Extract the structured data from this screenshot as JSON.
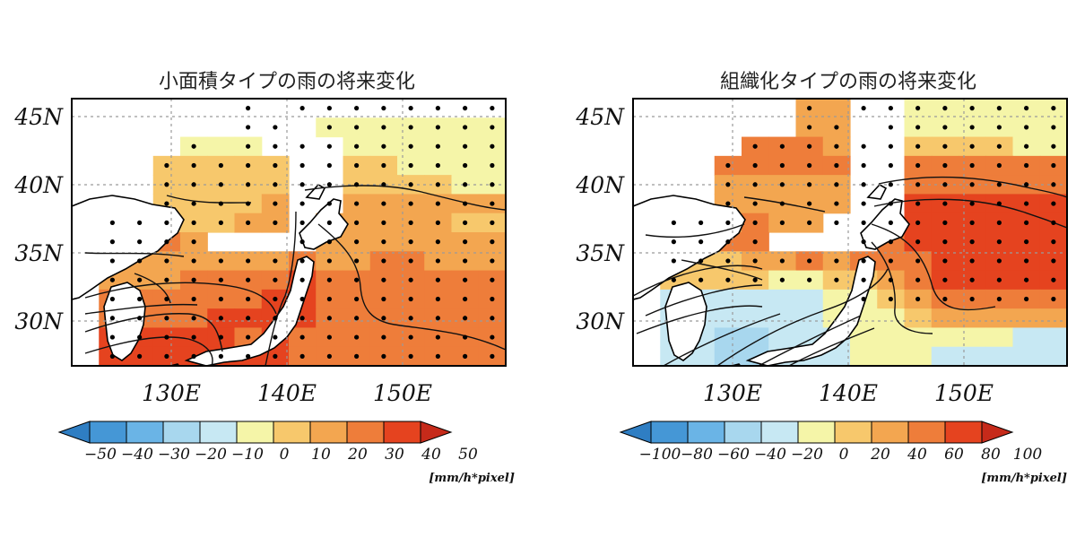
{
  "colors": {
    "scale": [
      "#2f7ec3",
      "#4597d6",
      "#6ab4e6",
      "#a8d7ee",
      "#c7e8f3",
      "#f5f5a8",
      "#f7c86c",
      "#f3a650",
      "#ee7d3a",
      "#e5431f",
      "#c62a1a"
    ]
  },
  "panels": [
    {
      "title": "小面積タイプの雨の将来変化",
      "lat_labels": [
        "45N",
        "40N",
        "35N",
        "30N"
      ],
      "lon_labels": [
        "130E",
        "140E",
        "150E"
      ],
      "colorbar_labels": [
        "−50",
        "−40",
        "−30",
        "−20",
        "−10",
        "0",
        "10",
        "20",
        "30",
        "40",
        "50"
      ],
      "unit": "[mm/h*pixel]",
      "grid_class": [
        [
          -1,
          -1,
          -1,
          -1,
          -1,
          -1,
          -1,
          -1,
          -1,
          -1,
          -1,
          -1,
          -1,
          -1,
          -1,
          -1
        ],
        [
          -1,
          -1,
          -1,
          -1,
          -1,
          -1,
          -1,
          -1,
          -1,
          5,
          5,
          5,
          5,
          5,
          5,
          5
        ],
        [
          -1,
          -1,
          -1,
          -1,
          5,
          5,
          5,
          -1,
          -1,
          -1,
          5,
          5,
          5,
          5,
          5,
          5
        ],
        [
          -1,
          -1,
          -1,
          6,
          6,
          6,
          6,
          6,
          -1,
          -1,
          6,
          6,
          5,
          5,
          5,
          5
        ],
        [
          -1,
          -1,
          -1,
          6,
          6,
          6,
          6,
          6,
          -1,
          -1,
          6,
          6,
          6,
          6,
          5,
          5
        ],
        [
          -1,
          -1,
          -1,
          6,
          6,
          6,
          6,
          7,
          -1,
          -1,
          7,
          7,
          7,
          7,
          7,
          7
        ],
        [
          -1,
          6,
          6,
          6,
          6,
          6,
          7,
          7,
          -1,
          7,
          7,
          7,
          7,
          7,
          6,
          6
        ],
        [
          -1,
          6,
          6,
          8,
          7,
          -1,
          -1,
          -1,
          -1,
          7,
          7,
          7,
          7,
          7,
          7,
          7
        ],
        [
          -1,
          7,
          7,
          7,
          7,
          7,
          7,
          7,
          8,
          7,
          7,
          8,
          8,
          7,
          7,
          7
        ],
        [
          -1,
          7,
          7,
          7,
          8,
          8,
          8,
          8,
          9,
          8,
          8,
          8,
          8,
          8,
          8,
          8
        ],
        [
          -1,
          8,
          8,
          8,
          8,
          8,
          8,
          9,
          9,
          8,
          8,
          8,
          8,
          8,
          8,
          8
        ],
        [
          -1,
          8,
          8,
          8,
          8,
          9,
          9,
          9,
          9,
          8,
          8,
          8,
          8,
          8,
          8,
          8
        ],
        [
          -1,
          9,
          9,
          9,
          9,
          9,
          8,
          9,
          8,
          8,
          8,
          8,
          8,
          8,
          8,
          8
        ],
        [
          -1,
          9,
          9,
          9,
          9,
          9,
          9,
          9,
          8,
          8,
          8,
          8,
          8,
          8,
          8,
          8
        ]
      ],
      "dots": [
        [
          0,
          0,
          0,
          0,
          0,
          0,
          1,
          0,
          1,
          1,
          1,
          1,
          1,
          1,
          1,
          1
        ],
        [
          0,
          0,
          0,
          0,
          0,
          0,
          1,
          1,
          0,
          1,
          1,
          1,
          1,
          1,
          1,
          1
        ],
        [
          0,
          0,
          0,
          0,
          1,
          0,
          1,
          1,
          1,
          1,
          1,
          1,
          1,
          1,
          1,
          1
        ],
        [
          0,
          0,
          0,
          1,
          1,
          1,
          1,
          1,
          1,
          1,
          1,
          1,
          1,
          1,
          1,
          1
        ],
        [
          0,
          0,
          0,
          1,
          1,
          1,
          1,
          1,
          1,
          1,
          1,
          1,
          1,
          1,
          1,
          1
        ],
        [
          0,
          0,
          0,
          1,
          1,
          1,
          1,
          1,
          1,
          1,
          1,
          1,
          1,
          1,
          1,
          1
        ],
        [
          0,
          1,
          1,
          1,
          1,
          1,
          1,
          1,
          1,
          1,
          1,
          1,
          1,
          1,
          1,
          1
        ],
        [
          0,
          1,
          1,
          1,
          1,
          0,
          0,
          0,
          1,
          1,
          1,
          1,
          1,
          1,
          1,
          1
        ],
        [
          0,
          1,
          1,
          1,
          1,
          1,
          1,
          1,
          1,
          1,
          1,
          1,
          1,
          1,
          1,
          1
        ],
        [
          0,
          1,
          1,
          1,
          1,
          1,
          1,
          1,
          1,
          1,
          1,
          1,
          1,
          1,
          1,
          1
        ],
        [
          0,
          1,
          1,
          1,
          1,
          1,
          1,
          1,
          1,
          1,
          1,
          1,
          1,
          1,
          1,
          1
        ],
        [
          0,
          1,
          1,
          1,
          1,
          1,
          1,
          1,
          1,
          1,
          1,
          1,
          1,
          1,
          1,
          1
        ],
        [
          0,
          1,
          1,
          1,
          1,
          1,
          1,
          1,
          1,
          1,
          1,
          1,
          1,
          1,
          1,
          1
        ],
        [
          0,
          1,
          1,
          1,
          1,
          1,
          1,
          1,
          1,
          1,
          1,
          1,
          1,
          1,
          1,
          1
        ]
      ]
    },
    {
      "title": "組織化タイプの雨の将来変化",
      "lat_labels": [
        "45N",
        "40N",
        "35N",
        "30N"
      ],
      "lon_labels": [
        "130E",
        "140E",
        "150E"
      ],
      "colorbar_labels": [
        "−100",
        "−80",
        "−60",
        "−40",
        "−20",
        "0",
        "20",
        "40",
        "60",
        "80",
        "100"
      ],
      "unit": "[mm/h*pixel]",
      "grid_class": [
        [
          -1,
          -1,
          -1,
          -1,
          -1,
          -1,
          7,
          7,
          -1,
          -1,
          5,
          5,
          5,
          5,
          5,
          5
        ],
        [
          -1,
          -1,
          -1,
          -1,
          -1,
          -1,
          7,
          7,
          -1,
          -1,
          5,
          5,
          5,
          5,
          5,
          5
        ],
        [
          -1,
          -1,
          -1,
          -1,
          8,
          8,
          8,
          7,
          -1,
          -1,
          6,
          6,
          6,
          6,
          5,
          5
        ],
        [
          -1,
          -1,
          -1,
          8,
          8,
          8,
          8,
          8,
          -1,
          -1,
          8,
          8,
          8,
          8,
          8,
          8
        ],
        [
          -1,
          -1,
          -1,
          7,
          7,
          7,
          7,
          7,
          -1,
          -1,
          8,
          8,
          8,
          8,
          8,
          8
        ],
        [
          -1,
          -1,
          -1,
          7,
          7,
          7,
          7,
          7,
          -1,
          -1,
          9,
          9,
          9,
          9,
          9,
          9
        ],
        [
          -1,
          7,
          7,
          7,
          8,
          7,
          7,
          -1,
          -1,
          -1,
          9,
          9,
          9,
          9,
          9,
          9
        ],
        [
          -1,
          6,
          6,
          8,
          8,
          -1,
          -1,
          -1,
          -1,
          8,
          9,
          9,
          9,
          9,
          9,
          9
        ],
        [
          -1,
          6,
          6,
          6,
          7,
          7,
          8,
          7,
          8,
          8,
          8,
          9,
          9,
          9,
          9,
          9
        ],
        [
          -1,
          6,
          6,
          6,
          6,
          5,
          5,
          6,
          6,
          7,
          8,
          9,
          9,
          9,
          9,
          9
        ],
        [
          -1,
          4,
          4,
          4,
          4,
          4,
          4,
          5,
          5,
          6,
          7,
          8,
          8,
          8,
          8,
          8
        ],
        [
          -1,
          4,
          4,
          4,
          4,
          4,
          4,
          5,
          5,
          5,
          6,
          7,
          7,
          7,
          7,
          7
        ],
        [
          -1,
          4,
          4,
          3,
          3,
          4,
          4,
          4,
          5,
          5,
          5,
          5,
          5,
          5,
          4,
          4
        ],
        [
          -1,
          4,
          4,
          3,
          3,
          4,
          4,
          4,
          5,
          5,
          5,
          4,
          4,
          4,
          4,
          4
        ]
      ],
      "dots": [
        [
          0,
          0,
          0,
          0,
          0,
          0,
          1,
          0,
          1,
          1,
          1,
          1,
          1,
          1,
          1,
          1
        ],
        [
          0,
          0,
          0,
          0,
          0,
          0,
          1,
          1,
          0,
          1,
          1,
          1,
          1,
          1,
          1,
          1
        ],
        [
          0,
          0,
          0,
          0,
          1,
          1,
          1,
          1,
          1,
          1,
          1,
          1,
          1,
          1,
          1,
          1
        ],
        [
          0,
          0,
          0,
          1,
          1,
          1,
          1,
          1,
          1,
          1,
          1,
          1,
          1,
          1,
          1,
          1
        ],
        [
          0,
          0,
          0,
          1,
          1,
          1,
          1,
          1,
          1,
          1,
          1,
          1,
          1,
          1,
          1,
          1
        ],
        [
          0,
          0,
          0,
          1,
          1,
          1,
          1,
          1,
          1,
          1,
          1,
          1,
          1,
          1,
          1,
          1
        ],
        [
          0,
          1,
          1,
          1,
          1,
          1,
          1,
          1,
          1,
          1,
          1,
          1,
          1,
          1,
          1,
          1
        ],
        [
          0,
          1,
          1,
          1,
          1,
          0,
          0,
          0,
          1,
          1,
          1,
          1,
          1,
          1,
          1,
          1
        ],
        [
          0,
          1,
          1,
          1,
          1,
          1,
          1,
          1,
          1,
          1,
          1,
          1,
          1,
          1,
          1,
          1
        ],
        [
          0,
          1,
          1,
          1,
          1,
          1,
          1,
          1,
          1,
          1,
          1,
          1,
          1,
          1,
          1,
          1
        ],
        [
          0,
          0,
          0,
          0,
          0,
          0,
          0,
          0,
          1,
          1,
          1,
          1,
          1,
          1,
          1,
          1
        ],
        [
          0,
          0,
          0,
          0,
          0,
          0,
          0,
          0,
          0,
          0,
          0,
          0,
          0,
          0,
          0,
          0
        ],
        [
          0,
          0,
          0,
          0,
          0,
          0,
          0,
          0,
          0,
          0,
          0,
          0,
          0,
          0,
          0,
          0
        ],
        [
          0,
          0,
          0,
          0,
          0,
          0,
          0,
          0,
          0,
          0,
          0,
          0,
          0,
          0,
          0,
          0
        ]
      ]
    }
  ]
}
